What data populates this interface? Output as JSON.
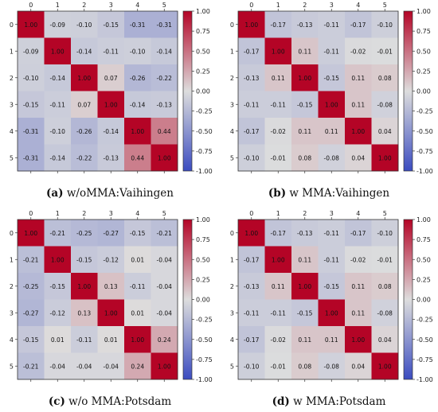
{
  "colorbar_ticks": [
    "1.00",
    "0.75",
    "0.50",
    "0.25",
    "0.00",
    "-0.25",
    "-0.50",
    "-0.75",
    "-1.00"
  ],
  "colors": {
    "low": "#3b4cc0",
    "mid": "#dddddd",
    "high": "#b40426"
  },
  "chart_data": [
    {
      "type": "heatmap",
      "caption_label": "(a)",
      "caption_text": "w/oMMA:Vaihingen",
      "row_labels": [
        "0",
        "1",
        "2",
        "3",
        "4",
        "5"
      ],
      "col_labels": [
        "0",
        "1",
        "2",
        "3",
        "4",
        "5"
      ],
      "values": [
        [
          1.0,
          -0.09,
          -0.1,
          -0.15,
          -0.31,
          -0.31
        ],
        [
          -0.09,
          1.0,
          -0.14,
          -0.11,
          -0.1,
          -0.14
        ],
        [
          -0.1,
          -0.14,
          1.0,
          0.07,
          -0.26,
          -0.22
        ],
        [
          -0.15,
          -0.11,
          0.07,
          1.0,
          -0.14,
          -0.13
        ],
        [
          -0.31,
          -0.1,
          -0.26,
          -0.14,
          1.0,
          0.44
        ],
        [
          -0.31,
          -0.14,
          -0.22,
          -0.13,
          0.44,
          1.0
        ]
      ],
      "vmin": -1.0,
      "vmax": 1.0,
      "colormap": "coolwarm"
    },
    {
      "type": "heatmap",
      "caption_label": "(b)",
      "caption_text": "w MMA:Vaihingen",
      "row_labels": [
        "0",
        "1",
        "2",
        "3",
        "4",
        "5"
      ],
      "col_labels": [
        "0",
        "1",
        "2",
        "3",
        "4",
        "5"
      ],
      "values": [
        [
          1.0,
          -0.17,
          -0.13,
          -0.11,
          -0.17,
          -0.1
        ],
        [
          -0.17,
          1.0,
          0.11,
          -0.11,
          -0.02,
          -0.01
        ],
        [
          -0.13,
          0.11,
          1.0,
          -0.15,
          0.11,
          0.08
        ],
        [
          -0.11,
          -0.11,
          -0.15,
          1.0,
          0.11,
          -0.08
        ],
        [
          -0.17,
          -0.02,
          0.11,
          0.11,
          1.0,
          0.04
        ],
        [
          -0.1,
          -0.01,
          0.08,
          -0.08,
          0.04,
          1.0
        ]
      ],
      "vmin": -1.0,
      "vmax": 1.0,
      "colormap": "coolwarm"
    },
    {
      "type": "heatmap",
      "caption_label": "(c)",
      "caption_text": "w/o MMA:Potsdam",
      "row_labels": [
        "0",
        "1",
        "2",
        "3",
        "4",
        "5"
      ],
      "col_labels": [
        "0",
        "1",
        "2",
        "3",
        "4",
        "5"
      ],
      "values": [
        [
          1.0,
          -0.21,
          -0.25,
          -0.27,
          -0.15,
          -0.21
        ],
        [
          -0.21,
          1.0,
          -0.15,
          -0.12,
          0.01,
          -0.04
        ],
        [
          -0.25,
          -0.15,
          1.0,
          0.13,
          -0.11,
          -0.04
        ],
        [
          -0.27,
          -0.12,
          0.13,
          1.0,
          0.01,
          -0.04
        ],
        [
          -0.15,
          0.01,
          -0.11,
          0.01,
          1.0,
          0.24
        ],
        [
          -0.21,
          -0.04,
          -0.04,
          -0.04,
          0.24,
          1.0
        ]
      ],
      "vmin": -1.0,
      "vmax": 1.0,
      "colormap": "coolwarm"
    },
    {
      "type": "heatmap",
      "caption_label": "(d)",
      "caption_text": "w MMA:Potsdam",
      "row_labels": [
        "0",
        "1",
        "2",
        "3",
        "4",
        "5"
      ],
      "col_labels": [
        "0",
        "1",
        "2",
        "3",
        "4",
        "5"
      ],
      "values": [
        [
          1.0,
          -0.17,
          -0.13,
          -0.11,
          -0.17,
          -0.1
        ],
        [
          -0.17,
          1.0,
          0.11,
          -0.11,
          -0.02,
          -0.01
        ],
        [
          -0.13,
          0.11,
          1.0,
          -0.15,
          0.11,
          0.08
        ],
        [
          -0.11,
          -0.11,
          -0.15,
          1.0,
          0.11,
          -0.08
        ],
        [
          -0.17,
          -0.02,
          0.11,
          0.11,
          1.0,
          0.04
        ],
        [
          -0.1,
          -0.01,
          0.08,
          -0.08,
          0.04,
          1.0
        ]
      ],
      "vmin": -1.0,
      "vmax": 1.0,
      "colormap": "coolwarm"
    }
  ]
}
